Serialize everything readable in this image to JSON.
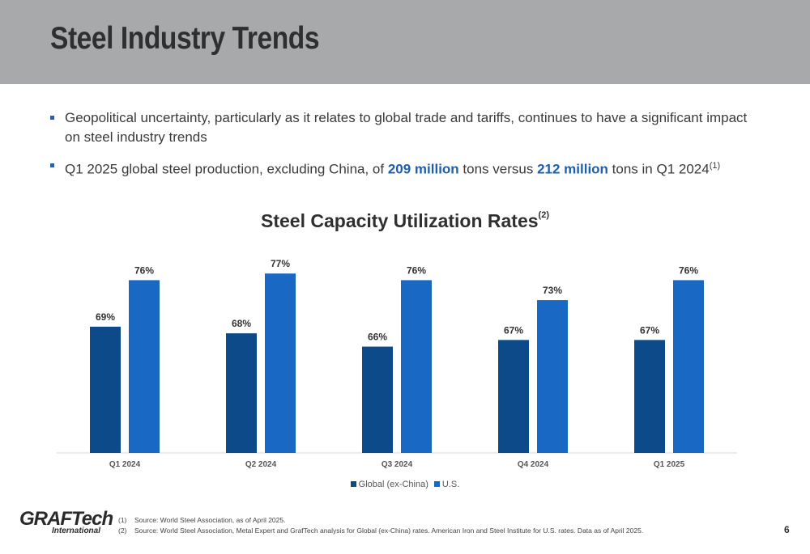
{
  "title": "Steel Industry Trends",
  "bullets": {
    "b1": "Geopolitical uncertainty, particularly as it relates to global trade and tariffs, continues to have a significant impact on steel industry trends",
    "b2_pre": "Q1 2025 global steel production, excluding China, of ",
    "b2_hl1": "209 million",
    "b2_mid": " tons versus ",
    "b2_hl2": "212 million",
    "b2_post": " tons in Q1 2024",
    "b2_sup": "(1)"
  },
  "chart_title": {
    "text": "Steel Capacity Utilization Rates",
    "sup": "(2)"
  },
  "chart_data": {
    "type": "bar",
    "categories": [
      "Q1 2024",
      "Q2 2024",
      "Q3 2024",
      "Q4 2024",
      "Q1 2025"
    ],
    "series": [
      {
        "name": "Global (ex-China)",
        "values": [
          69,
          68,
          66,
          67,
          67
        ],
        "color": "#0d4a8a"
      },
      {
        "name": "U.S.",
        "values": [
          76,
          77,
          76,
          73,
          76
        ],
        "color": "#1868c4"
      }
    ],
    "value_suffix": "%",
    "ylim": [
      50,
      78
    ],
    "grid": false,
    "legend": "bottom"
  },
  "logo": {
    "main": "GRAFTech",
    "sub": "International"
  },
  "footnotes": [
    {
      "num": "(1)",
      "text": "Source: World Steel Association, as of April 2025."
    },
    {
      "num": "(2)",
      "text": "Source: World Steel Association, Metal Expert and GrafTech analysis for Global (ex-China) rates.  American Iron and Steel Institute for U.S. rates.  Data as of April 2025."
    }
  ],
  "page_number": "6"
}
